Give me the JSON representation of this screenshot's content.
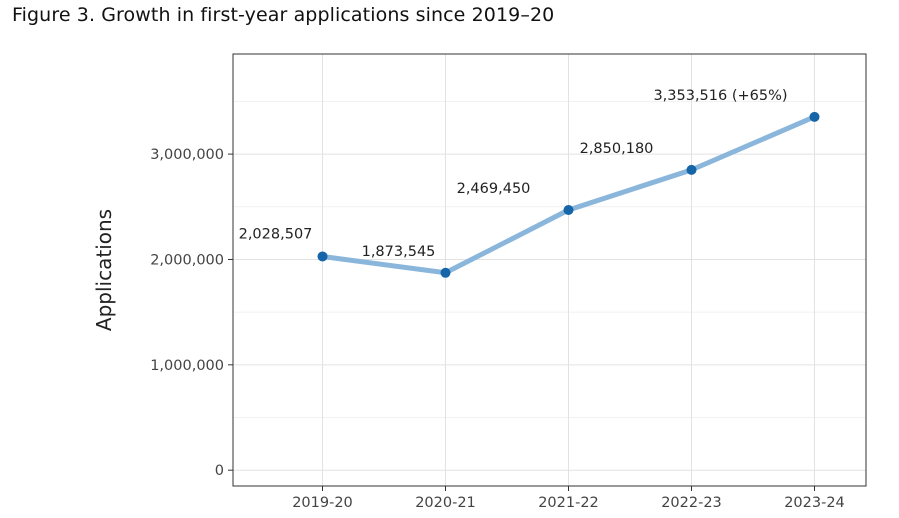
{
  "figure": {
    "title": "Figure 3. Growth in first-year applications since 2019–20"
  },
  "chart_data": {
    "type": "line",
    "title": "Figure 3. Growth in first-year applications since 2019–20",
    "xlabel": "",
    "ylabel": "Applications",
    "categories": [
      "2019-20",
      "2020-21",
      "2021-22",
      "2022-23",
      "2023-24"
    ],
    "series": [
      {
        "values": [
          2028507,
          1873545,
          2469450,
          2850180,
          3353516
        ],
        "color": "#8ab6dc",
        "marker_color": "#1565a8"
      }
    ],
    "data_labels": [
      "2,028,507",
      "1,873,545",
      "2,469,450",
      "2,850,180",
      "3,353,516 (+65%)"
    ],
    "ylim": [
      -150000,
      3950000
    ],
    "yticks": [
      0,
      1000000,
      2000000,
      3000000
    ],
    "ytick_labels": [
      "0",
      "1,000,000",
      "2,000,000",
      "3,000,000"
    ],
    "grid": true,
    "legend": "none"
  }
}
